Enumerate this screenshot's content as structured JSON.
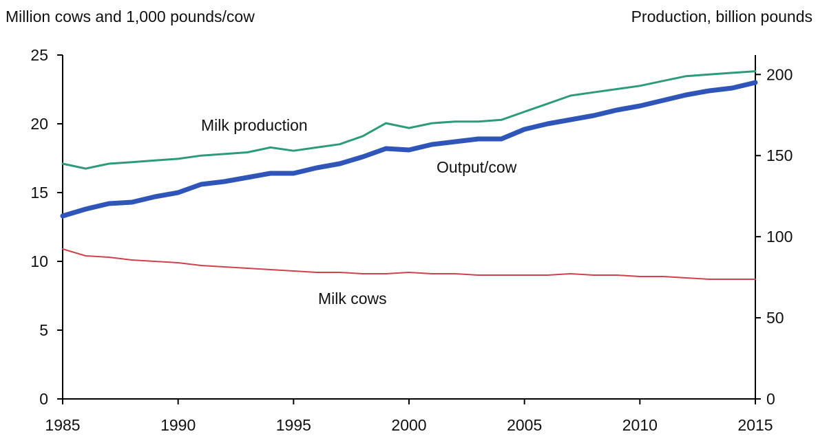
{
  "chart_data": {
    "type": "line",
    "left_axis_label": "Million cows and 1,000 pounds/cow",
    "right_axis_label": "Production, billion pounds",
    "x_ticks": [
      "1985",
      "1990",
      "1995",
      "2000",
      "2005",
      "2010",
      "2015"
    ],
    "left_ticks": [
      "0",
      "5",
      "10",
      "15",
      "20",
      "25"
    ],
    "right_ticks": [
      "0",
      "50",
      "100",
      "150",
      "200"
    ],
    "xlim": [
      1985,
      2015
    ],
    "ylim_left": [
      0,
      25
    ],
    "ylim_right": [
      0,
      212
    ],
    "grid": false,
    "colors": {
      "milk_production": "#2e9a7c",
      "output_per_cow": "#2f55b8",
      "milk_cows": "#d0414b",
      "axis": "#000000"
    },
    "series": [
      {
        "name": "Milk production",
        "axis": "right",
        "x": [
          1985,
          1986,
          1987,
          1988,
          1989,
          1990,
          1991,
          1992,
          1993,
          1994,
          1995,
          1996,
          1997,
          1998,
          1999,
          2000,
          2001,
          2002,
          2003,
          2004,
          2005,
          2006,
          2007,
          2008,
          2009,
          2010,
          2011,
          2012,
          2013,
          2014,
          2015
        ],
        "y": [
          145,
          142,
          145,
          146,
          147,
          148,
          150,
          151,
          152,
          155,
          153,
          155,
          157,
          162,
          170,
          167,
          170,
          171,
          171,
          172,
          177,
          182,
          187,
          189,
          191,
          193,
          196,
          199,
          200,
          201,
          202
        ]
      },
      {
        "name": "Output/cow",
        "axis": "left",
        "x": [
          1985,
          1986,
          1987,
          1988,
          1989,
          1990,
          1991,
          1992,
          1993,
          1994,
          1995,
          1996,
          1997,
          1998,
          1999,
          2000,
          2001,
          2002,
          2003,
          2004,
          2005,
          2006,
          2007,
          2008,
          2009,
          2010,
          2011,
          2012,
          2013,
          2014,
          2015
        ],
        "y": [
          13.3,
          13.8,
          14.2,
          14.3,
          14.7,
          15.0,
          15.6,
          15.8,
          16.1,
          16.4,
          16.4,
          16.8,
          17.1,
          17.6,
          18.2,
          18.1,
          18.5,
          18.7,
          18.9,
          18.9,
          19.6,
          20.0,
          20.3,
          20.6,
          21.0,
          21.3,
          21.7,
          22.1,
          22.4,
          22.6,
          23.0
        ]
      },
      {
        "name": "Milk cows",
        "axis": "left",
        "x": [
          1985,
          1986,
          1987,
          1988,
          1989,
          1990,
          1991,
          1992,
          1993,
          1994,
          1995,
          1996,
          1997,
          1998,
          1999,
          2000,
          2001,
          2002,
          2003,
          2004,
          2005,
          2006,
          2007,
          2008,
          2009,
          2010,
          2011,
          2012,
          2013,
          2014,
          2015
        ],
        "y": [
          10.9,
          10.4,
          10.3,
          10.1,
          10.0,
          9.9,
          9.7,
          9.6,
          9.5,
          9.4,
          9.3,
          9.2,
          9.2,
          9.1,
          9.1,
          9.2,
          9.1,
          9.1,
          9.0,
          9.0,
          9.0,
          9.0,
          9.1,
          9.0,
          9.0,
          8.9,
          8.9,
          8.8,
          8.7,
          8.7,
          8.7
        ]
      }
    ],
    "annotations": [
      "Milk production",
      "Output/cow",
      "Milk cows"
    ]
  }
}
